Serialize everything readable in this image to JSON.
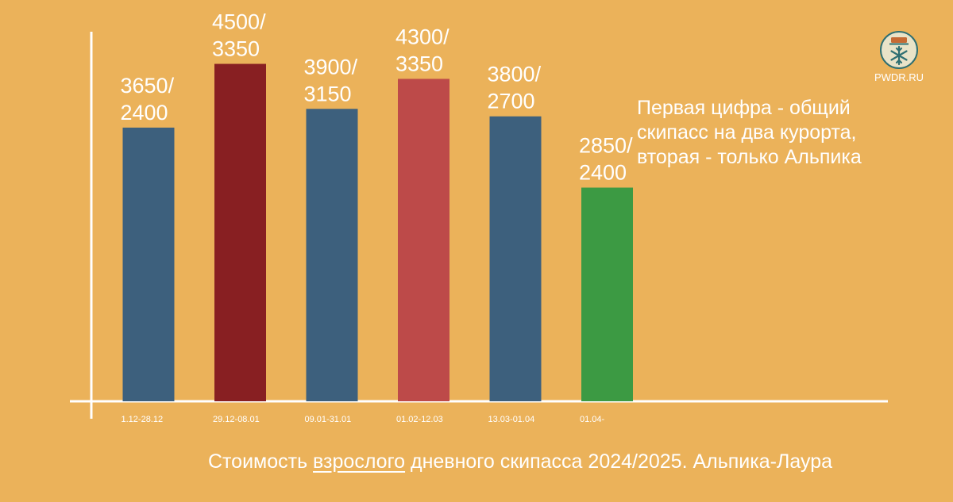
{
  "chart_data": {
    "type": "bar",
    "categories": [
      "1.12-28.12",
      "29.12-08.01",
      "09.01-31.01",
      "01.02-12.03",
      "13.03-01.04",
      "01.04-"
    ],
    "series": [
      {
        "name": "Общий скипасс на два курорта",
        "values": [
          3650,
          4500,
          3900,
          4300,
          3800,
          2850
        ]
      },
      {
        "name": "Только Альпика",
        "values": [
          2400,
          3350,
          3150,
          3350,
          2700,
          2400
        ]
      }
    ],
    "bar_value_series": "Общий скипасс на два курорта",
    "data_labels": [
      [
        "3650/",
        "2400"
      ],
      [
        "4500/",
        "3350"
      ],
      [
        "3900/",
        "3150"
      ],
      [
        "4300/",
        "3350"
      ],
      [
        "3800/",
        "2700"
      ],
      [
        "2850/",
        "2400"
      ]
    ],
    "bar_colors": [
      "#3D607D",
      "#881F22",
      "#3D607D",
      "#BD4A49",
      "#3D607D",
      "#3C9A43"
    ],
    "ylim": [
      0,
      4950
    ],
    "grid": false,
    "legend": "none",
    "title": "",
    "xlabel": "",
    "ylabel": ""
  },
  "note": {
    "lines": [
      "Первая цифра - общий",
      "скипасс на два курорта,",
      "вторая - только Альпика"
    ]
  },
  "logo": {
    "text": "PWDR.RU",
    "icon": "snowflake-icon"
  },
  "caption": {
    "before": "Стоимость ",
    "underlined": "взрослого",
    "after": " дневного скипасса 2024/2025. Альпика-Лаура"
  },
  "colors": {
    "background": "#EBB25A",
    "axis": "#FFFFFF",
    "text": "#FFFFFF",
    "logo_circle": "#E9E3C8",
    "logo_stroke": "#2F6F72",
    "logo_accent": "#C66A33"
  }
}
